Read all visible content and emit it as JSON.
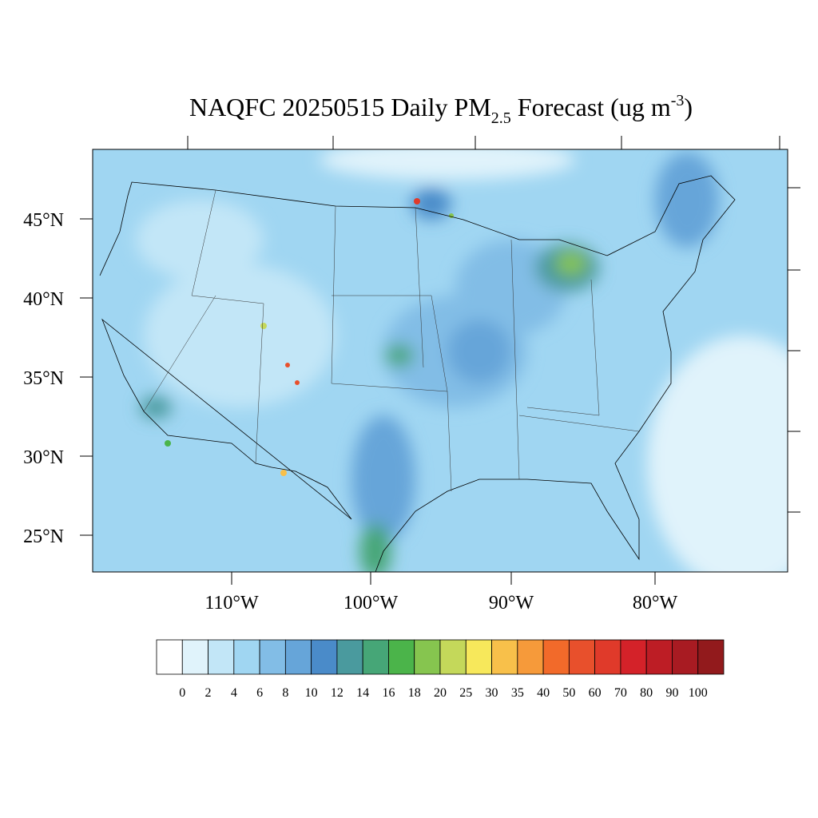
{
  "header": {
    "title": {
      "main": "NAQFC 20250515 Daily PM",
      "sub": "2.5",
      "mid": " Forecast (ug m",
      "sup": "-3",
      "end": ")"
    }
  },
  "map": {
    "lat_labels": [
      "45°N",
      "40°N",
      "35°N",
      "30°N",
      "25°N"
    ],
    "lon_labels": [
      "110°W",
      "100°W",
      "90°W",
      "80°W"
    ],
    "colorbar": {
      "levels": [
        0,
        2,
        4,
        6,
        8,
        10,
        12,
        14,
        16,
        18,
        20,
        25,
        30,
        35,
        40,
        50,
        60,
        70,
        80,
        90,
        100
      ],
      "colors": [
        "#ffffff",
        "#e0f3fb",
        "#c2e6f7",
        "#a0d6f2",
        "#82bde6",
        "#66a5d9",
        "#4a8bc9",
        "#4a9a9e",
        "#46a677",
        "#4bb44a",
        "#86c54f",
        "#c4d85a",
        "#f7e85b",
        "#f8c04a",
        "#f69a3a",
        "#f26a2a",
        "#e8502c",
        "#e03a2a",
        "#d42229",
        "#bd1d25",
        "#a81b22",
        "#921a1c"
      ]
    }
  }
}
